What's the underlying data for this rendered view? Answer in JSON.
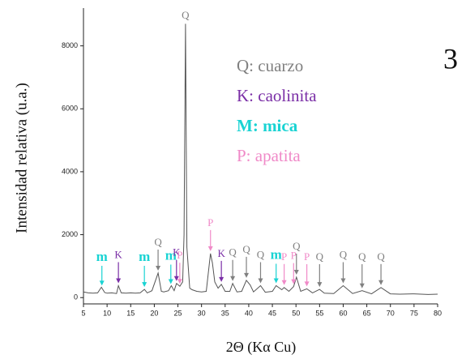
{
  "chart_data": {
    "type": "line",
    "panel_label": "3",
    "y_label": "Intensidad relativa (u.a.)",
    "x_label": "2Θ (Kα Cu)",
    "xlim": [
      5,
      80
    ],
    "xticks": [
      5,
      10,
      15,
      20,
      25,
      30,
      35,
      40,
      45,
      50,
      55,
      60,
      65,
      70,
      75,
      80
    ],
    "ylim": [
      -200,
      9200
    ],
    "yticks": [
      0,
      2000,
      4000,
      6000,
      8000
    ],
    "series": [
      {
        "color": "#555555",
        "x": [
          5,
          6,
          7,
          8,
          8.8,
          9.5,
          10,
          11,
          12,
          12.4,
          13,
          14,
          15,
          16,
          17,
          17.9,
          18.5,
          19.5,
          20.8,
          21.5,
          22,
          23,
          23.6,
          24.2,
          24.7,
          25.4,
          26,
          26.3,
          26.6,
          26.9,
          27.5,
          28,
          29,
          30,
          31,
          31.9,
          32.3,
          32.8,
          33.5,
          34.2,
          35,
          36,
          36.6,
          37.5,
          38.5,
          39.5,
          40.3,
          41,
          42.5,
          43.5,
          45,
          45.8,
          47,
          47.5,
          48.5,
          49.5,
          50.1,
          51,
          52.3,
          53.5,
          55,
          56,
          58,
          60,
          62,
          64,
          66,
          68,
          70,
          72,
          75,
          78,
          80
        ],
        "values": [
          180,
          150,
          140,
          150,
          330,
          160,
          140,
          150,
          130,
          380,
          150,
          140,
          150,
          140,
          150,
          260,
          150,
          220,
          780,
          200,
          180,
          220,
          380,
          220,
          450,
          360,
          500,
          2000,
          8700,
          1600,
          300,
          250,
          200,
          180,
          200,
          1400,
          1100,
          500,
          300,
          420,
          200,
          200,
          450,
          180,
          200,
          550,
          400,
          180,
          380,
          170,
          200,
          380,
          250,
          320,
          200,
          350,
          650,
          200,
          280,
          150,
          260,
          140,
          130,
          380,
          130,
          220,
          120,
          320,
          120,
          110,
          120,
          100,
          110
        ]
      }
    ],
    "legend": [
      {
        "label": "Q: cuarzo",
        "color": "#808080"
      },
      {
        "label": "K: caolinita",
        "color": "#7a2ea6"
      },
      {
        "label": "M: mica",
        "color": "#19d3d3"
      },
      {
        "label": "P: apatita",
        "color": "#f08ac8"
      }
    ],
    "annotations": [
      {
        "label": "m",
        "x": 8.9,
        "color": "#19d3d3"
      },
      {
        "label": "K",
        "x": 12.4,
        "color": "#7a2ea6"
      },
      {
        "label": "m",
        "x": 17.9,
        "color": "#19d3d3"
      },
      {
        "label": "Q",
        "x": 20.8,
        "color": "#808080"
      },
      {
        "label": "m",
        "x": 23.5,
        "color": "#19d3d3"
      },
      {
        "label": "K",
        "x": 24.7,
        "color": "#7a2ea6"
      },
      {
        "label": "P",
        "x": 25.4,
        "color": "#f08ac8"
      },
      {
        "label": "Q",
        "x": 26.6,
        "color": "#808080"
      },
      {
        "label": "P",
        "x": 31.9,
        "color": "#f08ac8"
      },
      {
        "label": "K",
        "x": 34.2,
        "color": "#7a2ea6"
      },
      {
        "label": "Q",
        "x": 36.6,
        "color": "#808080"
      },
      {
        "label": "Q",
        "x": 39.5,
        "color": "#808080"
      },
      {
        "label": "Q",
        "x": 42.5,
        "color": "#808080"
      },
      {
        "label": "m",
        "x": 45.8,
        "color": "#19d3d3"
      },
      {
        "label": "P",
        "x": 47.5,
        "color": "#f08ac8"
      },
      {
        "label": "P",
        "x": 49.5,
        "color": "#f08ac8"
      },
      {
        "label": "Q",
        "x": 50.1,
        "color": "#808080"
      },
      {
        "label": "P",
        "x": 52.3,
        "color": "#f08ac8"
      },
      {
        "label": "Q",
        "x": 55,
        "color": "#808080"
      },
      {
        "label": "Q",
        "x": 60,
        "color": "#808080"
      },
      {
        "label": "Q",
        "x": 64,
        "color": "#808080"
      },
      {
        "label": "Q",
        "x": 68,
        "color": "#808080"
      }
    ]
  }
}
